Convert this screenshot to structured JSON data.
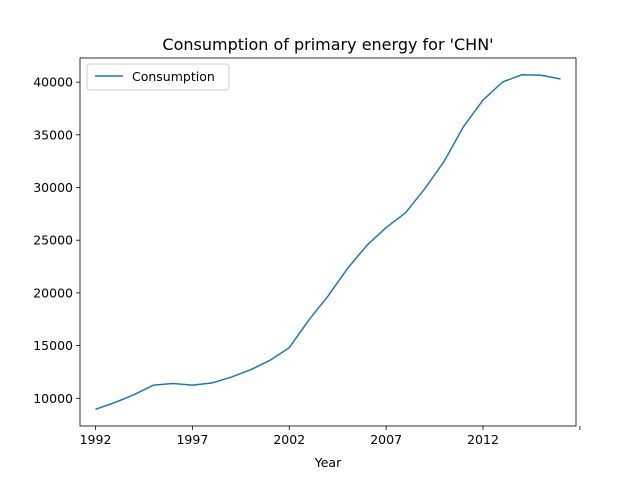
{
  "chart_data": {
    "type": "line",
    "title": "Consumption of primary energy for 'CHN'",
    "xlabel": "Year",
    "ylabel": "",
    "x": [
      1992,
      1993,
      1994,
      1995,
      1996,
      1997,
      1998,
      1999,
      2000,
      2001,
      2002,
      2003,
      2004,
      2005,
      2006,
      2007,
      2008,
      2009,
      2010,
      2011,
      2012,
      2013,
      2014,
      2015,
      2016
    ],
    "series": [
      {
        "name": "Consumption",
        "color": "#1f77b4",
        "values": [
          8950,
          9600,
          10350,
          11250,
          11400,
          11250,
          11450,
          12000,
          12700,
          13600,
          14800,
          17400,
          19700,
          22300,
          24500,
          26200,
          27600,
          29900,
          32500,
          35800,
          38300,
          40000,
          40700,
          40650,
          40300
        ]
      }
    ],
    "xlim": [
      1991.2,
      2016.8
    ],
    "ylim": [
      7370,
      42290
    ],
    "x_ticks": [
      1992,
      1997,
      2002,
      2007,
      2012,
      2017
    ],
    "x_tick_labels": [
      "1992",
      "1997",
      "2002",
      "2007",
      "2012",
      ""
    ],
    "y_ticks": [
      10000,
      15000,
      20000,
      25000,
      30000,
      35000,
      40000
    ],
    "y_tick_labels": [
      "10000",
      "15000",
      "20000",
      "25000",
      "30000",
      "35000",
      "40000"
    ],
    "legend_position": "top-left",
    "grid": false
  }
}
